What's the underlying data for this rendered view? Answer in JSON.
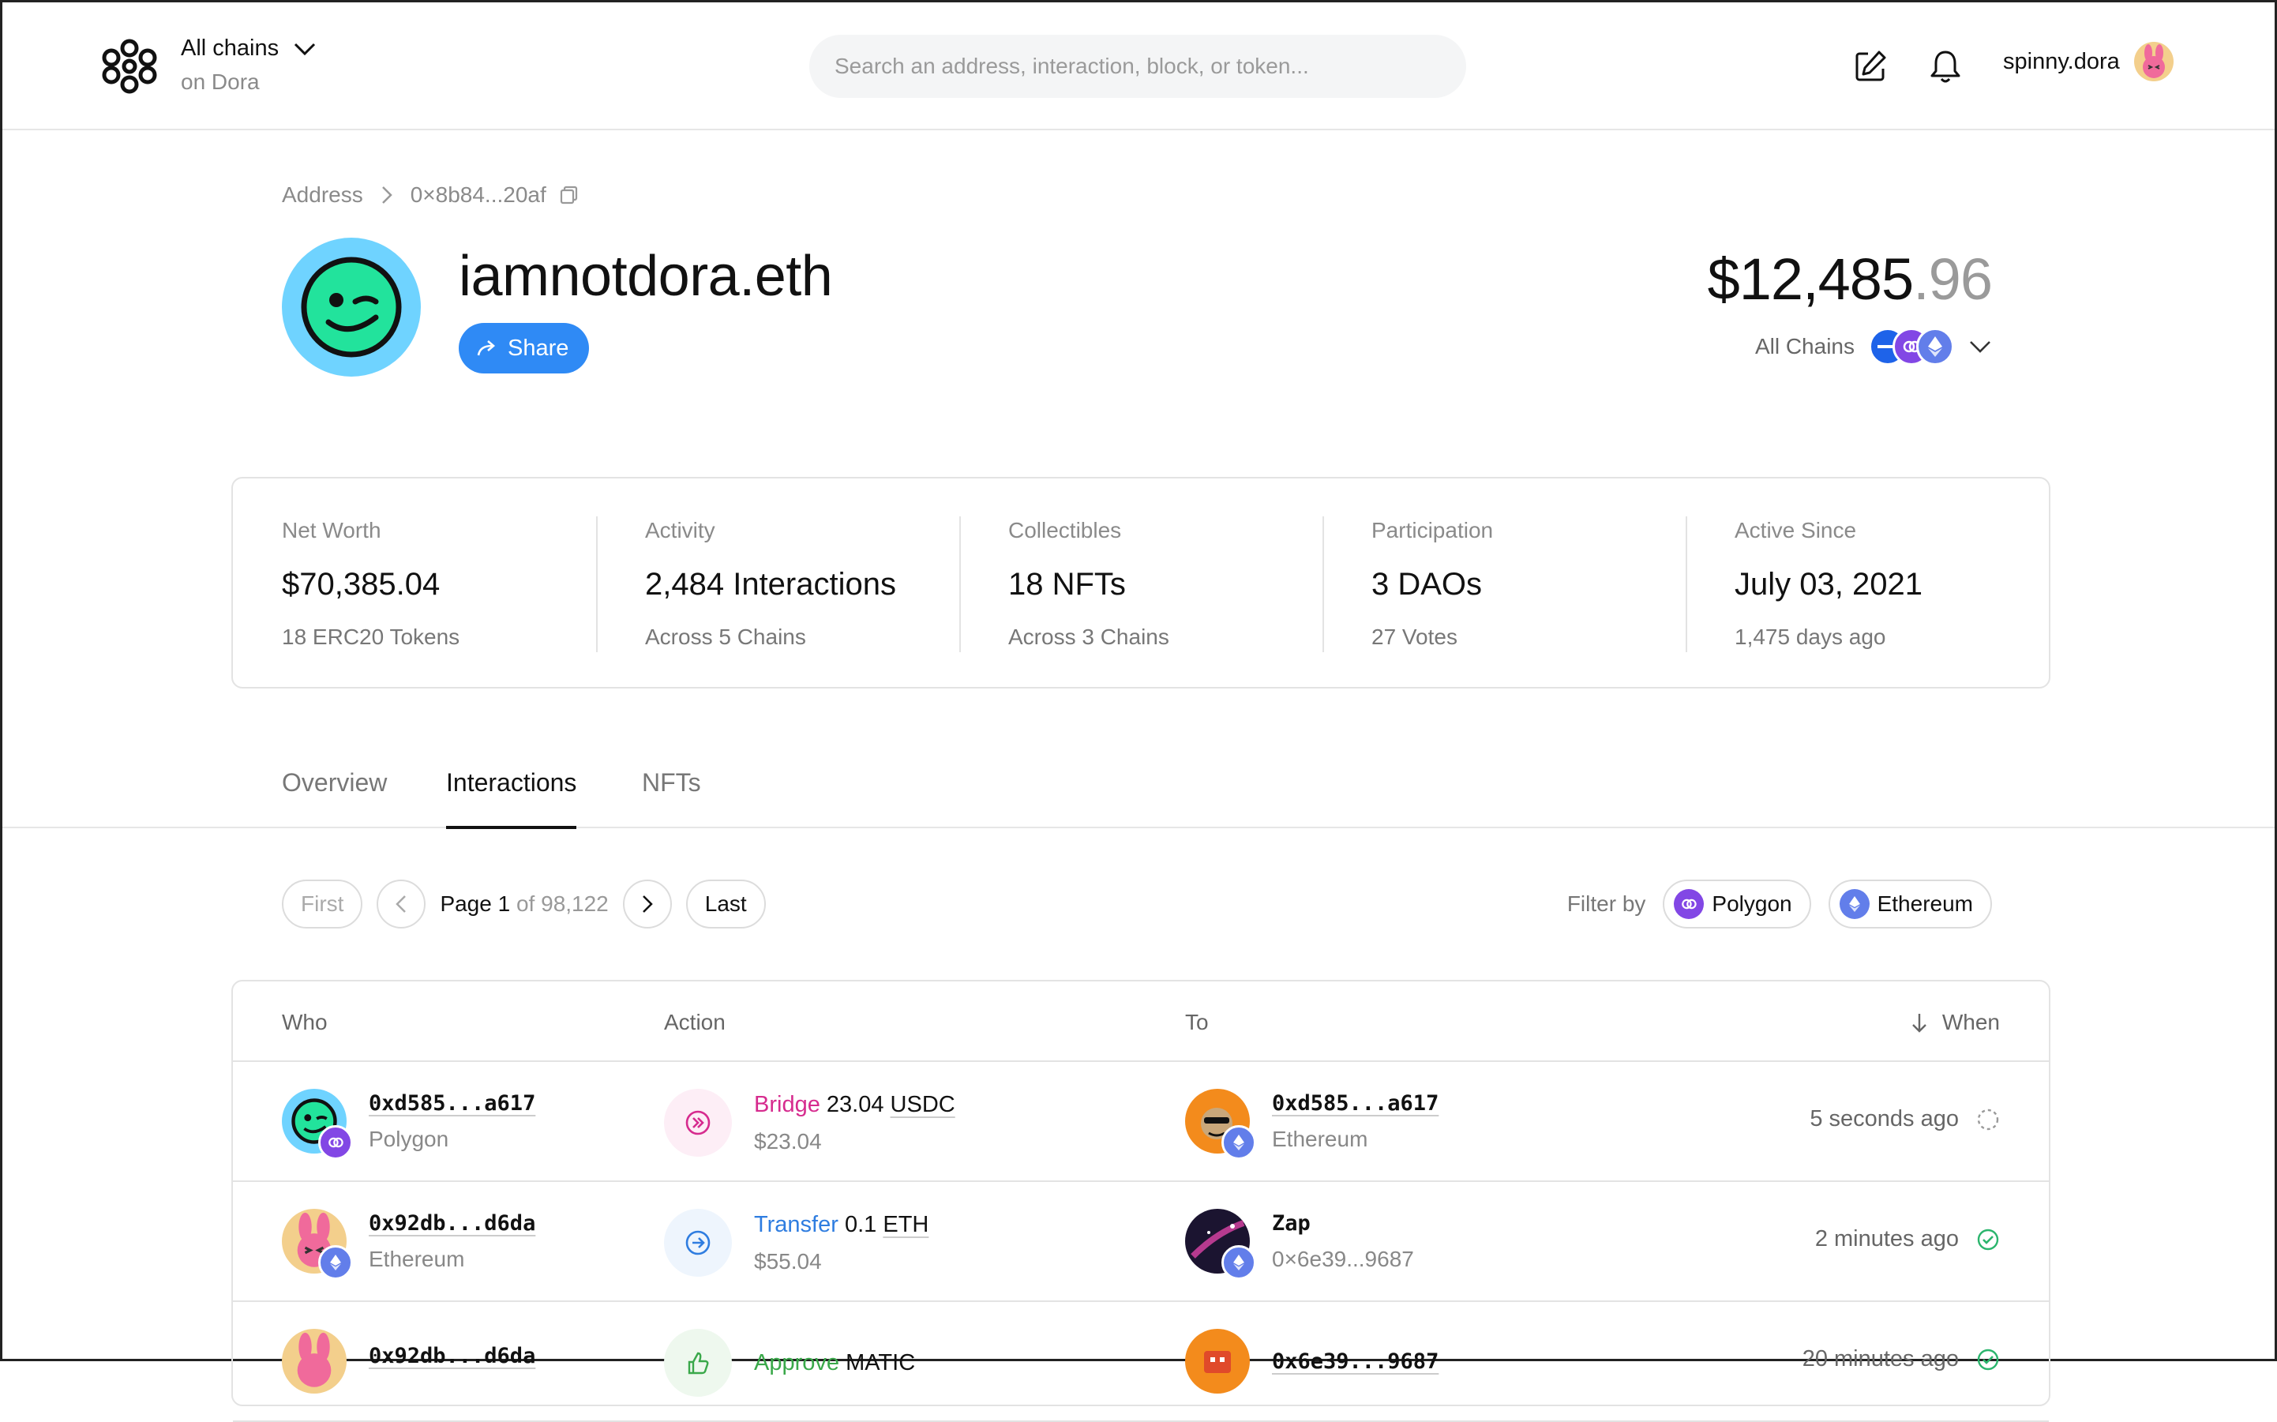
{
  "header": {
    "chain_selector": {
      "title": "All chains",
      "subtitle": "on Dora"
    },
    "search_placeholder": "Search an address, interaction, block, or token...",
    "username": "spinny.dora"
  },
  "breadcrumb": {
    "root": "Address",
    "current": "0×8b84...20af"
  },
  "profile": {
    "name": "iamnotdora.eth",
    "share_label": "Share",
    "balance_main": "$12,485",
    "balance_cents": ".96",
    "chains_label": "All Chains"
  },
  "stats": [
    {
      "label": "Net Worth",
      "value": "$70,385.04",
      "sub": "18 ERC20 Tokens"
    },
    {
      "label": "Activity",
      "value": "2,484 Interactions",
      "sub": "Across 5 Chains"
    },
    {
      "label": "Collectibles",
      "value": "18 NFTs",
      "sub": "Across 3 Chains"
    },
    {
      "label": "Participation",
      "value": "3 DAOs",
      "sub": "27 Votes"
    },
    {
      "label": "Active Since",
      "value": "July 03, 2021",
      "sub": "1,475 days ago"
    }
  ],
  "tabs": [
    {
      "label": "Overview"
    },
    {
      "label": "Interactions"
    },
    {
      "label": "NFTs"
    }
  ],
  "pager": {
    "first": "First",
    "page_word": "Page",
    "page": "1",
    "of_total": "of 98,122",
    "last": "Last"
  },
  "filter": {
    "label": "Filter by",
    "options": [
      "Polygon",
      "Ethereum"
    ]
  },
  "table": {
    "columns": {
      "who": "Who",
      "action": "Action",
      "to": "To",
      "when": "When"
    },
    "rows": [
      {
        "who_addr": "0xd585...a617",
        "who_chain": "Polygon",
        "action_verb": "Bridge",
        "action_amount": "23.04",
        "action_token": "USDC",
        "action_usd": "$23.04",
        "to_name": "0xd585...a617",
        "to_sub": "Ethereum",
        "when": "5 seconds ago",
        "status": "pending"
      },
      {
        "who_addr": "0x92db...d6da",
        "who_chain": "Ethereum",
        "action_verb": "Transfer",
        "action_amount": "0.1",
        "action_token": "ETH",
        "action_usd": "$55.04",
        "to_name": "Zap",
        "to_sub": "0×6e39...9687",
        "when": "2 minutes ago",
        "status": "success"
      },
      {
        "who_addr": "0x92db...d6da",
        "who_chain": "",
        "action_verb": "Approve",
        "action_amount": "",
        "action_token": "MATIC",
        "action_usd": "",
        "to_name": "0x6e39...9687",
        "to_sub": "",
        "when": "20 minutes ago",
        "status": "success"
      }
    ]
  },
  "colors": {
    "accent_blue": "#2f8af5",
    "bridge_pink": "#d62b8e",
    "transfer_blue": "#2f7de0",
    "approve_green": "#3aa84a",
    "polygon_purple": "#8247e5",
    "ethereum_blue": "#627eea",
    "success_green": "#2bb56d"
  }
}
